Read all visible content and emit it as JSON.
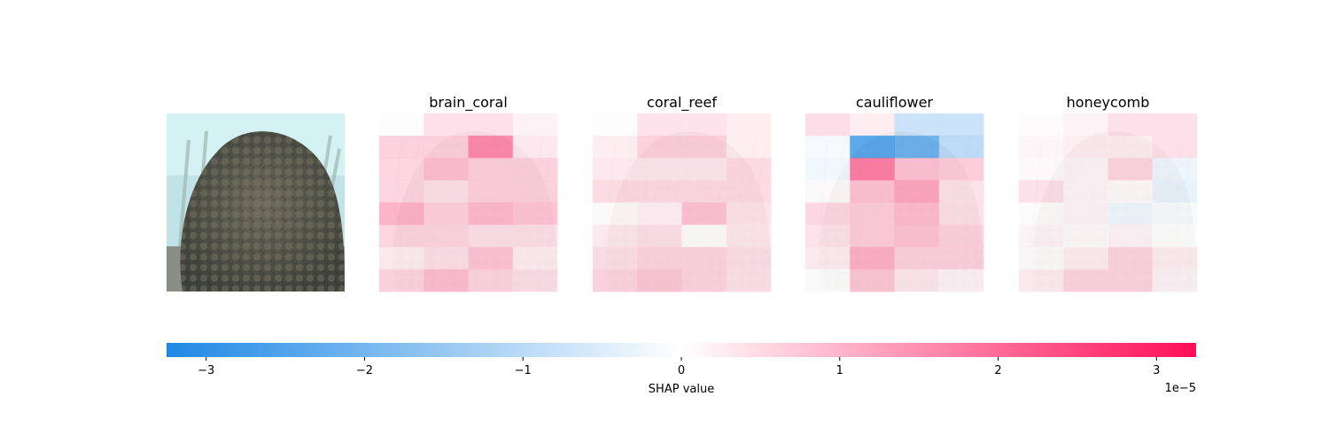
{
  "chart_data": {
    "type": "heatmap",
    "panels": [
      {
        "title": "",
        "values": []
      },
      {
        "title": "brain_coral",
        "values": [
          [
            0.02,
            0.55,
            0.55,
            0.2
          ],
          [
            0.85,
            0.85,
            2.1,
            0.4
          ],
          [
            0.75,
            1.15,
            0.85,
            0.85
          ],
          [
            0.75,
            0.55,
            0.85,
            0.85
          ],
          [
            1.35,
            0.85,
            1.25,
            1.05
          ],
          [
            0.75,
            0.75,
            0.55,
            0.55
          ],
          [
            0.3,
            0.55,
            1.05,
            0.3
          ],
          [
            0.75,
            1.15,
            0.75,
            0.55
          ]
        ]
      },
      {
        "title": "coral_reef",
        "values": [
          [
            0.02,
            0.5,
            0.5,
            0.3
          ],
          [
            0.3,
            0.85,
            0.85,
            0.3
          ],
          [
            0.4,
            0.4,
            0.4,
            0.65
          ],
          [
            0.65,
            0.65,
            0.65,
            0.65
          ],
          [
            0.1,
            0.25,
            1.1,
            0.5
          ],
          [
            0.4,
            0.55,
            0.05,
            0.4
          ],
          [
            0.55,
            0.75,
            0.75,
            0.55
          ],
          [
            0.75,
            1.0,
            0.75,
            0.5
          ]
        ]
      },
      {
        "title": "cauliflower",
        "values": [
          [
            0.6,
            0.3,
            -1.0,
            -1.0
          ],
          [
            -0.15,
            -3.2,
            -2.8,
            -1.3
          ],
          [
            -0.25,
            2.3,
            1.1,
            0.9
          ],
          [
            0.1,
            1.1,
            1.6,
            0.5
          ],
          [
            0.7,
            0.9,
            1.2,
            0.55
          ],
          [
            0.5,
            0.9,
            1.1,
            0.8
          ],
          [
            0.3,
            1.4,
            0.8,
            0.8
          ],
          [
            0.0,
            1.0,
            0.4,
            0.2
          ]
        ]
      },
      {
        "title": "honeycomb",
        "values": [
          [
            0.05,
            0.2,
            0.55,
            0.55
          ],
          [
            0.15,
            0.3,
            0.3,
            0.55
          ],
          [
            0.1,
            0.2,
            0.75,
            -0.3
          ],
          [
            0.55,
            0.2,
            0.1,
            -0.4
          ],
          [
            0.05,
            0.2,
            -0.3,
            -0.1
          ],
          [
            0.2,
            0.1,
            0.2,
            0.0
          ],
          [
            0.05,
            0.3,
            0.75,
            0.3
          ],
          [
            0.3,
            0.75,
            0.75,
            0.2
          ]
        ]
      }
    ],
    "colorbar": {
      "label": "SHAP value",
      "offset_label": "1e−5",
      "range": [
        -3.25,
        3.25
      ],
      "ticks": [
        -3,
        -2,
        -1,
        0,
        1,
        2,
        3
      ],
      "tick_labels": [
        "−3",
        "−2",
        "−1",
        "0",
        "1",
        "2",
        "3"
      ],
      "negative_color": "#1e88e5",
      "positive_color": "#ff0d57"
    }
  }
}
